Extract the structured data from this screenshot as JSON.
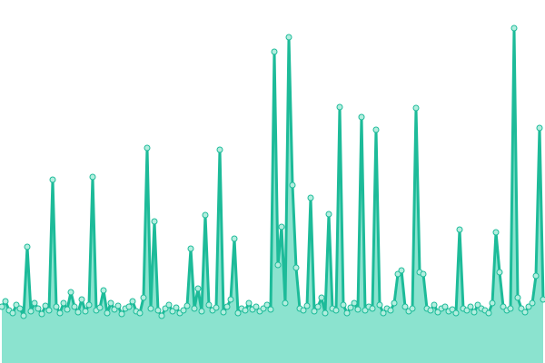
{
  "chart_data": {
    "type": "area",
    "line_color": "#1dbb99",
    "fill_color": "#8be3cf",
    "marker_fill": "#b4eedf",
    "ylim": [
      0,
      400
    ],
    "values": [
      62,
      68,
      58,
      55,
      64,
      60,
      52,
      128,
      57,
      66,
      60,
      54,
      63,
      58,
      202,
      62,
      55,
      66,
      59,
      78,
      62,
      56,
      70,
      57,
      64,
      205,
      58,
      61,
      80,
      55,
      66,
      59,
      63,
      54,
      60,
      62,
      68,
      57,
      55,
      72,
      237,
      60,
      156,
      58,
      52,
      60,
      64,
      57,
      61,
      55,
      58,
      63,
      126,
      60,
      82,
      57,
      163,
      64,
      58,
      61,
      235,
      56,
      62,
      70,
      137,
      55,
      60,
      58,
      66,
      59,
      62,
      57,
      60,
      64,
      59,
      343,
      108,
      150,
      66,
      359,
      196,
      105,
      60,
      58,
      63,
      182,
      57,
      62,
      72,
      55,
      164,
      60,
      58,
      282,
      64,
      55,
      61,
      66,
      59,
      271,
      58,
      62,
      60,
      257,
      64,
      55,
      60,
      58,
      66,
      98,
      102,
      62,
      57,
      60,
      281,
      100,
      98,
      60,
      58,
      64,
      56,
      60,
      62,
      57,
      59,
      55,
      147,
      60,
      58,
      62,
      56,
      64,
      60,
      58,
      55,
      66,
      144,
      100,
      62,
      58,
      60,
      369,
      72,
      60,
      56,
      62,
      66,
      96,
      259,
      70
    ]
  }
}
